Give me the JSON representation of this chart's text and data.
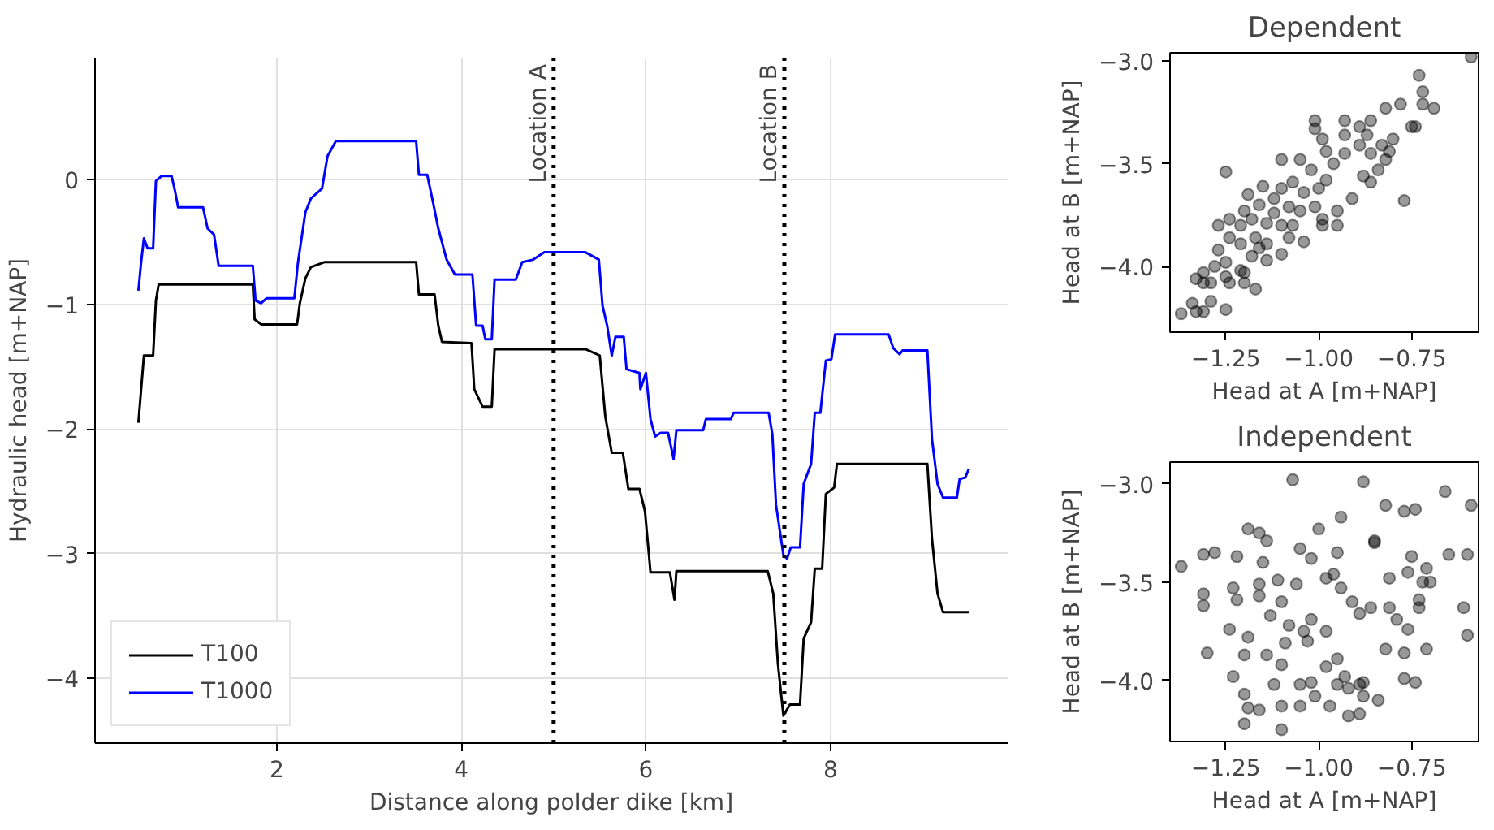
{
  "chart_data": [
    {
      "type": "line",
      "xlabel": "Distance along polder dike [km]",
      "ylabel": "Hydraulic head [m+NAP]",
      "xlim": [
        0.03,
        9.92
      ],
      "ylim": [
        -4.52,
        0.98
      ],
      "xticks": [
        2,
        4,
        6,
        8
      ],
      "yticks": [
        {
          "value": -4,
          "label": "−4"
        },
        {
          "value": -3,
          "label": "−3"
        },
        {
          "value": -2,
          "label": "−2"
        },
        {
          "value": -1,
          "label": "−1"
        },
        0
      ],
      "grid": true,
      "legend": "bottom left",
      "line_style": "solid",
      "ref_lines": [
        {
          "axis": "x",
          "value": 5,
          "label": "Location A",
          "color": "#000000",
          "line_style": "dotted"
        },
        {
          "axis": "x",
          "value": 7.5,
          "label": "Location B",
          "color": "#000000",
          "line_style": "dotted"
        }
      ],
      "series": [
        {
          "name": "T100",
          "color": "#000000",
          "x": [
            0.5,
            0.53,
            0.56,
            0.66,
            0.69,
            0.72,
            1.74,
            1.76,
            1.83,
            2.22,
            2.25,
            2.31,
            2.37,
            2.52,
            3.51,
            3.54,
            3.71,
            3.75,
            3.79,
            4.11,
            4.14,
            4.23,
            4.33,
            4.36,
            5.35,
            5.5,
            5.56,
            5.63,
            5.75,
            5.81,
            5.93,
            5.99,
            6.05,
            6.26,
            6.31,
            6.33,
            7.32,
            7.38,
            7.43,
            7.49,
            7.56,
            7.67,
            7.71,
            7.79,
            7.83,
            7.91,
            7.95,
            8.04,
            8.07,
            9.05,
            9.1,
            9.16,
            9.22,
            9.5
          ],
          "values": [
            -1.95,
            -1.68,
            -1.41,
            -1.41,
            -0.97,
            -0.84,
            -0.84,
            -1.12,
            -1.16,
            -1.16,
            -0.99,
            -0.79,
            -0.7,
            -0.66,
            -0.66,
            -0.92,
            -0.92,
            -1.17,
            -1.3,
            -1.31,
            -1.68,
            -1.82,
            -1.82,
            -1.36,
            -1.36,
            -1.41,
            -1.9,
            -2.19,
            -2.19,
            -2.48,
            -2.48,
            -2.66,
            -3.15,
            -3.15,
            -3.37,
            -3.14,
            -3.14,
            -3.32,
            -3.88,
            -4.3,
            -4.21,
            -4.21,
            -3.68,
            -3.55,
            -3.12,
            -3.12,
            -2.52,
            -2.47,
            -2.28,
            -2.28,
            -2.88,
            -3.32,
            -3.47,
            -3.47
          ]
        },
        {
          "name": "T1000",
          "color": "#0000ff",
          "x": [
            0.5,
            0.53,
            0.56,
            0.6,
            0.66,
            0.69,
            0.75,
            0.86,
            0.9,
            0.93,
            1.2,
            1.25,
            1.32,
            1.37,
            1.74,
            1.77,
            1.83,
            1.89,
            2.19,
            2.23,
            2.31,
            2.37,
            2.49,
            2.55,
            2.64,
            3.51,
            3.54,
            3.63,
            3.69,
            3.75,
            3.84,
            3.93,
            4.12,
            4.16,
            4.23,
            4.26,
            4.33,
            4.36,
            4.59,
            4.66,
            4.78,
            4.9,
            5.34,
            5.49,
            5.53,
            5.58,
            5.63,
            5.67,
            5.76,
            5.79,
            5.93,
            5.94,
            6.0,
            6.05,
            6.1,
            6.16,
            6.24,
            6.3,
            6.33,
            6.62,
            6.65,
            6.92,
            6.95,
            7.33,
            7.37,
            7.41,
            7.49,
            7.53,
            7.57,
            7.67,
            7.71,
            7.79,
            7.83,
            7.89,
            7.95,
            8.01,
            8.05,
            8.63,
            8.68,
            8.75,
            8.78,
            9.05,
            9.1,
            9.16,
            9.22,
            9.37,
            9.4,
            9.46,
            9.5
          ],
          "values": [
            -0.89,
            -0.66,
            -0.47,
            -0.55,
            -0.55,
            -0.01,
            0.03,
            0.03,
            -0.1,
            -0.22,
            -0.22,
            -0.39,
            -0.44,
            -0.69,
            -0.69,
            -0.97,
            -0.99,
            -0.95,
            -0.95,
            -0.66,
            -0.26,
            -0.15,
            -0.07,
            0.19,
            0.31,
            0.31,
            0.04,
            0.04,
            -0.17,
            -0.39,
            -0.64,
            -0.76,
            -0.76,
            -1.17,
            -1.17,
            -1.28,
            -1.28,
            -0.8,
            -0.8,
            -0.66,
            -0.64,
            -0.58,
            -0.58,
            -0.64,
            -1.01,
            -1.17,
            -1.41,
            -1.26,
            -1.26,
            -1.52,
            -1.55,
            -1.68,
            -1.55,
            -1.92,
            -2.06,
            -2.03,
            -2.03,
            -2.24,
            -2.01,
            -2.01,
            -1.92,
            -1.92,
            -1.87,
            -1.87,
            -2.04,
            -2.61,
            -3.01,
            -3.04,
            -2.95,
            -2.95,
            -2.44,
            -2.28,
            -1.87,
            -1.87,
            -1.45,
            -1.44,
            -1.24,
            -1.24,
            -1.35,
            -1.4,
            -1.37,
            -1.37,
            -2.08,
            -2.44,
            -2.55,
            -2.55,
            -2.4,
            -2.39,
            -2.32
          ]
        }
      ]
    },
    {
      "type": "scatter",
      "title": "Dependent",
      "xlabel": "Head at A [m+NAP]",
      "ylabel": "Head at B [m+NAP]",
      "xlim": [
        -1.4,
        -0.57
      ],
      "ylim": [
        -4.32,
        -2.96
      ],
      "xticks": [
        {
          "value": -1.25,
          "label": "−1.25"
        },
        {
          "value": -1.0,
          "label": "−1.00"
        },
        {
          "value": -0.75,
          "label": "−0.75"
        }
      ],
      "yticks": [
        {
          "value": -4.0,
          "label": "−4.0"
        },
        {
          "value": -3.5,
          "label": "−3.5"
        },
        {
          "value": -3.0,
          "label": "−3.0"
        }
      ],
      "marker": "circle",
      "series": [
        {
          "color": "#000000",
          "x": [
            -0.59,
            -0.73,
            -0.72,
            -0.72,
            -0.78,
            -0.75,
            -0.82,
            -0.86,
            -0.89,
            -0.93,
            -0.93,
            -0.87,
            -0.83,
            -0.8,
            -0.81,
            -0.86,
            -0.89,
            -0.93,
            -0.98,
            -0.99,
            -1.01,
            -1.01,
            -1.02,
            -0.98,
            -0.96,
            -1.0,
            -1.04,
            -1.07,
            -1.1,
            -1.05,
            -1.1,
            -1.12,
            -1.08,
            -1.05,
            -1.01,
            -0.99,
            -0.95,
            -0.91,
            -0.88,
            -0.84,
            -0.82,
            -0.77,
            -0.74,
            -0.69,
            -1.15,
            -1.16,
            -1.12,
            -1.14,
            -1.1,
            -1.07,
            -1.19,
            -1.2,
            -1.18,
            -1.21,
            -1.24,
            -1.21,
            -1.17,
            -1.16,
            -1.14,
            -1.18,
            -1.14,
            -1.25,
            -1.27,
            -1.24,
            -1.27,
            -1.25,
            -1.28,
            -1.31,
            -1.33,
            -1.29,
            -1.25,
            -1.21,
            -1.24,
            -1.2,
            -1.17,
            -1.2,
            -1.31,
            -1.34,
            -1.37,
            -1.33,
            -1.31,
            -1.25,
            -1.29,
            -1.1,
            -1.04,
            -1.08,
            -0.95,
            -0.99,
            -0.86
          ],
          "values": [
            -2.98,
            -3.07,
            -3.15,
            -3.21,
            -3.21,
            -3.32,
            -3.23,
            -3.29,
            -3.32,
            -3.36,
            -3.29,
            -3.36,
            -3.41,
            -3.38,
            -3.44,
            -3.45,
            -3.41,
            -3.45,
            -3.44,
            -3.38,
            -3.29,
            -3.33,
            -3.53,
            -3.58,
            -3.5,
            -3.62,
            -3.64,
            -3.59,
            -3.48,
            -3.48,
            -3.62,
            -3.67,
            -3.71,
            -3.73,
            -3.71,
            -3.77,
            -3.73,
            -3.67,
            -3.56,
            -3.53,
            -3.48,
            -3.68,
            -3.32,
            -3.23,
            -3.61,
            -3.7,
            -3.74,
            -3.79,
            -3.8,
            -3.8,
            -3.65,
            -3.73,
            -3.77,
            -3.8,
            -3.86,
            -3.89,
            -3.86,
            -3.91,
            -3.89,
            -3.95,
            -3.97,
            -3.54,
            -3.8,
            -3.77,
            -3.92,
            -3.98,
            -4.0,
            -4.03,
            -4.06,
            -4.08,
            -4.05,
            -4.02,
            -4.08,
            -4.03,
            -4.11,
            -4.08,
            -4.08,
            -4.18,
            -4.23,
            -4.22,
            -4.22,
            -4.21,
            -4.17,
            -3.94,
            -3.88,
            -3.86,
            -3.8,
            -3.8,
            -3.59
          ]
        }
      ]
    },
    {
      "type": "scatter",
      "title": "Independent",
      "xlabel": "Head at A [m+NAP]",
      "ylabel": "Head at B [m+NAP]",
      "xlim": [
        -1.4,
        -0.57
      ],
      "ylim": [
        -4.31,
        -2.89
      ],
      "xticks": [
        {
          "value": -1.25,
          "label": "−1.25"
        },
        {
          "value": -1.0,
          "label": "−1.00"
        },
        {
          "value": -0.75,
          "label": "−0.75"
        }
      ],
      "yticks": [
        {
          "value": -4.0,
          "label": "−4.0"
        },
        {
          "value": -3.5,
          "label": "−3.5"
        },
        {
          "value": -3.0,
          "label": "−3.0"
        }
      ],
      "marker": "circle",
      "series": [
        {
          "color": "#000000",
          "x": [
            -1.07,
            -0.88,
            -0.66,
            -0.59,
            -0.82,
            -0.74,
            -0.77,
            -0.94,
            -1.0,
            -0.85,
            -0.85,
            -1.19,
            -1.16,
            -1.14,
            -1.37,
            -1.31,
            -1.28,
            -1.22,
            -1.15,
            -1.05,
            -1.02,
            -0.95,
            -0.75,
            -0.71,
            -0.65,
            -0.6,
            -1.31,
            -1.31,
            -1.23,
            -1.22,
            -1.16,
            -1.16,
            -1.11,
            -1.06,
            -1.1,
            -1.13,
            -1.08,
            -1.04,
            -1.02,
            -0.98,
            -0.96,
            -0.94,
            -0.91,
            -0.89,
            -0.86,
            -0.81,
            -0.76,
            -0.72,
            -0.7,
            -0.73,
            -0.79,
            -0.76,
            -0.73,
            -0.81,
            -0.61,
            -0.6,
            -1.3,
            -1.24,
            -1.19,
            -1.23,
            -1.2,
            -1.14,
            -1.1,
            -1.09,
            -1.03,
            -0.98,
            -0.95,
            -0.98,
            -0.93,
            -0.95,
            -0.89,
            -0.88,
            -0.84,
            -0.77,
            -0.74,
            -0.82,
            -0.77,
            -0.71,
            -1.2,
            -1.19,
            -1.16,
            -1.2,
            -1.1,
            -1.1,
            -1.05,
            -1.01,
            -0.97,
            -0.92,
            -0.89,
            -1.12,
            -1.05,
            -1.02,
            -0.92,
            -0.88
          ],
          "values": [
            -2.98,
            -2.99,
            -3.04,
            -3.11,
            -3.11,
            -3.13,
            -3.14,
            -3.17,
            -3.23,
            -3.29,
            -3.3,
            -3.23,
            -3.25,
            -3.29,
            -3.42,
            -3.36,
            -3.35,
            -3.37,
            -3.4,
            -3.33,
            -3.38,
            -3.35,
            -3.37,
            -3.43,
            -3.36,
            -3.36,
            -3.56,
            -3.62,
            -3.53,
            -3.59,
            -3.51,
            -3.57,
            -3.49,
            -3.51,
            -3.6,
            -3.67,
            -3.72,
            -3.75,
            -3.69,
            -3.48,
            -3.46,
            -3.53,
            -3.6,
            -3.66,
            -3.63,
            -3.48,
            -3.45,
            -3.5,
            -3.5,
            -3.59,
            -3.69,
            -3.74,
            -3.63,
            -3.63,
            -3.63,
            -3.77,
            -3.86,
            -3.74,
            -3.78,
            -3.98,
            -3.87,
            -3.87,
            -3.92,
            -3.81,
            -3.8,
            -3.75,
            -3.89,
            -3.93,
            -3.98,
            -4.02,
            -4.02,
            -4.08,
            -4.1,
            -3.99,
            -4.01,
            -3.84,
            -3.86,
            -3.84,
            -4.07,
            -4.14,
            -4.15,
            -4.22,
            -4.13,
            -4.25,
            -4.13,
            -4.08,
            -4.13,
            -4.18,
            -4.17,
            -4.02,
            -4.02,
            -4.01,
            -4.04,
            -4.01
          ]
        }
      ]
    }
  ]
}
